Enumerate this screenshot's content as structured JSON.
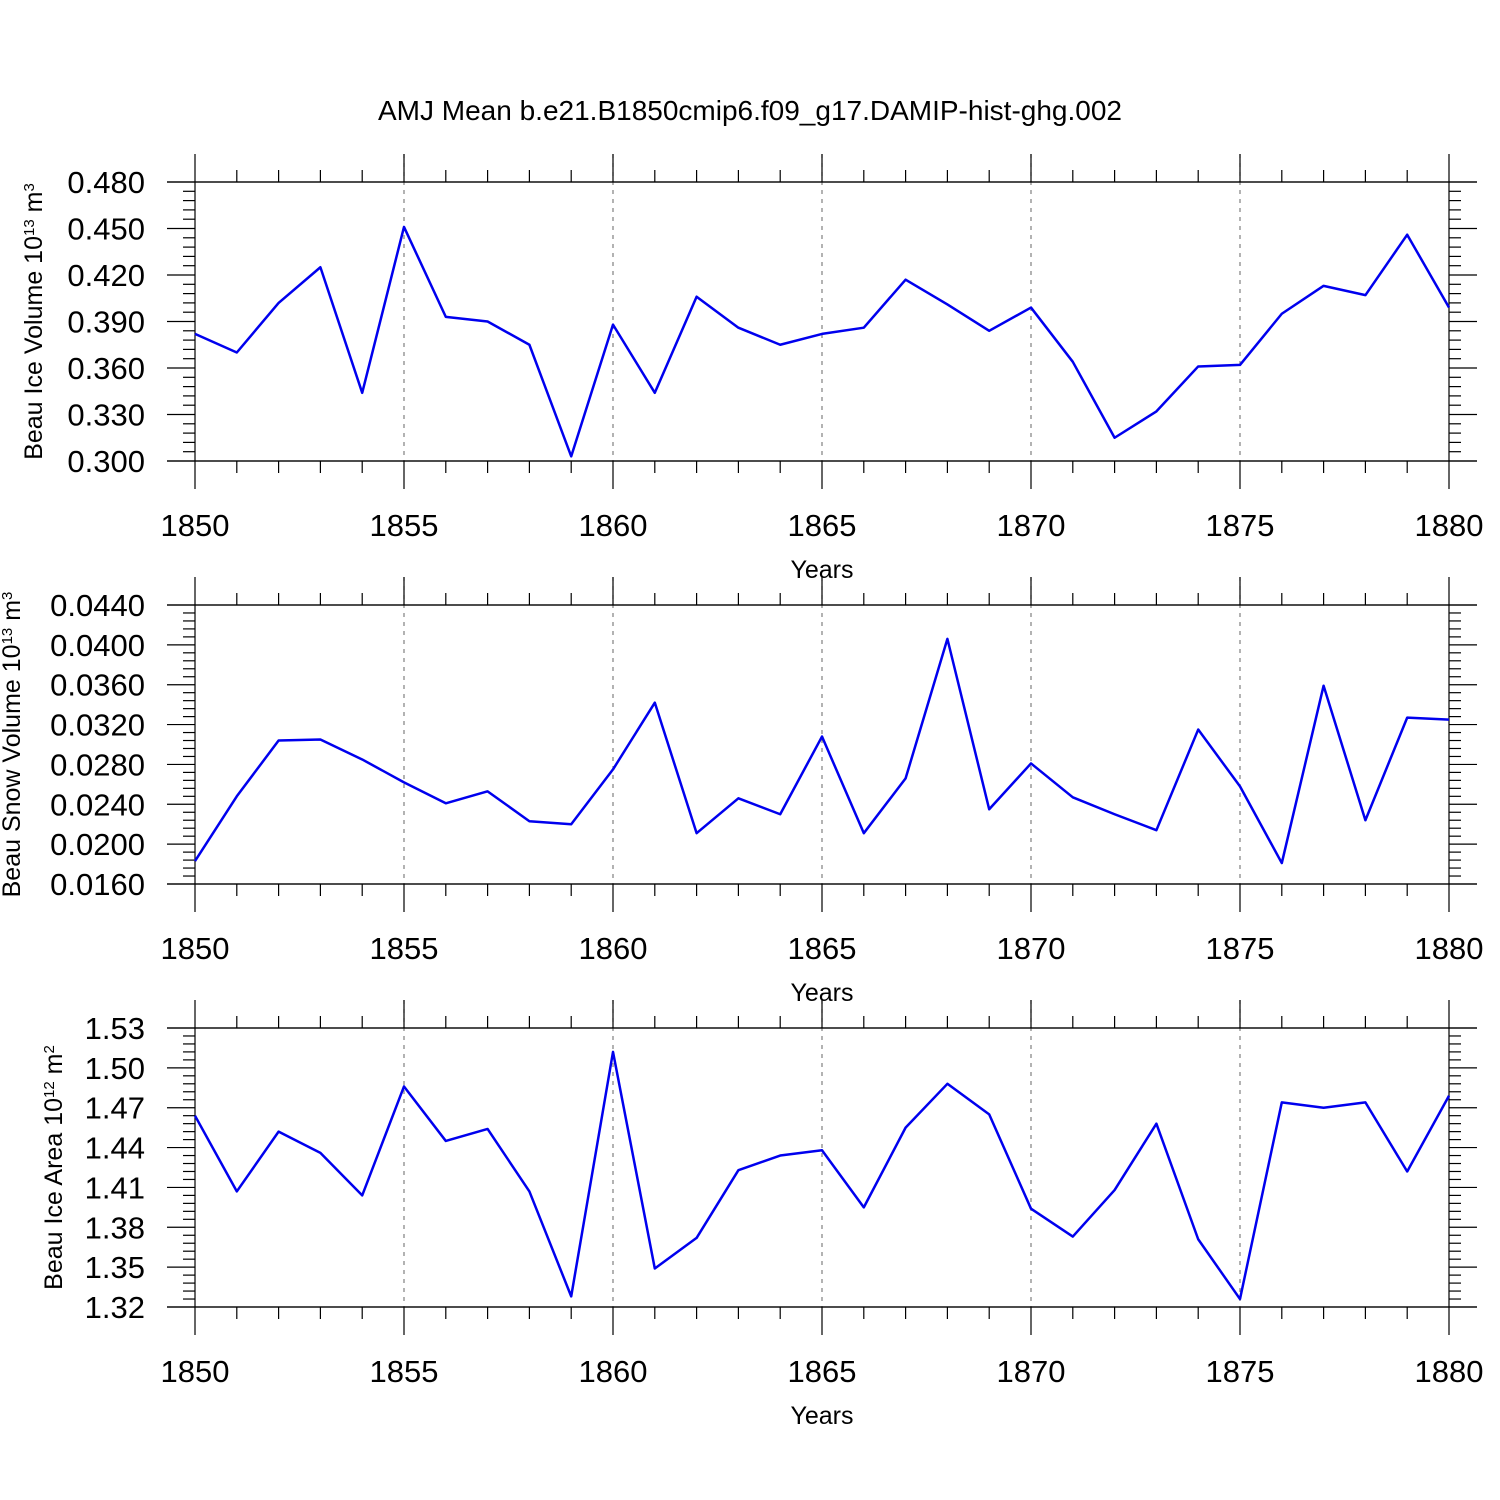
{
  "title": "AMJ Mean b.e21.B1850cmip6.f09_g17.DAMIP-hist-ghg.002",
  "colors": {
    "line": "#0000ee",
    "grid": "#808080",
    "axis": "#000000"
  },
  "chart_data": [
    {
      "type": "line",
      "xlabel": "Years",
      "ylabel": {
        "text": "Beau Ice Volume 10",
        "exp": "13",
        "unit": " m",
        "unit_exp": "3"
      },
      "xlim": [
        1850,
        1880
      ],
      "ylim": [
        0.3,
        0.48
      ],
      "yticks": [
        "0.300",
        "0.330",
        "0.360",
        "0.390",
        "0.420",
        "0.450",
        "0.480"
      ],
      "xticks": [
        "1850",
        "1855",
        "1860",
        "1865",
        "1870",
        "1875",
        "1880"
      ],
      "grid_x": [
        1855,
        1860,
        1865,
        1870,
        1875
      ],
      "x": [
        1850,
        1851,
        1852,
        1853,
        1854,
        1855,
        1856,
        1857,
        1858,
        1859,
        1860,
        1861,
        1862,
        1863,
        1864,
        1865,
        1866,
        1867,
        1868,
        1869,
        1870,
        1871,
        1872,
        1873,
        1874,
        1875,
        1876,
        1877,
        1878,
        1879,
        1880
      ],
      "series": [
        {
          "values": [
            0.382,
            0.37,
            0.402,
            0.425,
            0.344,
            0.451,
            0.393,
            0.39,
            0.375,
            0.303,
            0.388,
            0.344,
            0.406,
            0.386,
            0.375,
            0.382,
            0.386,
            0.417,
            0.401,
            0.384,
            0.399,
            0.364,
            0.315,
            0.332,
            0.361,
            0.362,
            0.395,
            0.413,
            0.407,
            0.446,
            0.399
          ]
        }
      ]
    },
    {
      "type": "line",
      "xlabel": "Years",
      "ylabel": {
        "text": "Beau Snow Volume 10",
        "exp": "13",
        "unit": " m",
        "unit_exp": "3"
      },
      "xlim": [
        1850,
        1880
      ],
      "ylim": [
        0.016,
        0.044
      ],
      "yticks": [
        "0.0160",
        "0.0200",
        "0.0240",
        "0.0280",
        "0.0320",
        "0.0360",
        "0.0400",
        "0.0440"
      ],
      "xticks": [
        "1850",
        "1855",
        "1860",
        "1865",
        "1870",
        "1875",
        "1880"
      ],
      "grid_x": [
        1855,
        1860,
        1865,
        1870,
        1875
      ],
      "x": [
        1850,
        1851,
        1852,
        1853,
        1854,
        1855,
        1856,
        1857,
        1858,
        1859,
        1860,
        1861,
        1862,
        1863,
        1864,
        1865,
        1866,
        1867,
        1868,
        1869,
        1870,
        1871,
        1872,
        1873,
        1874,
        1875,
        1876,
        1877,
        1878,
        1879,
        1880
      ],
      "series": [
        {
          "values": [
            0.0183,
            0.0248,
            0.0304,
            0.0305,
            0.0285,
            0.0262,
            0.0241,
            0.0253,
            0.0223,
            0.022,
            0.0275,
            0.0342,
            0.0211,
            0.0246,
            0.023,
            0.0308,
            0.0211,
            0.0266,
            0.0406,
            0.0235,
            0.0281,
            0.0247,
            0.023,
            0.0214,
            0.0315,
            0.0258,
            0.0181,
            0.0359,
            0.0224,
            0.0327,
            0.0325
          ]
        }
      ]
    },
    {
      "type": "line",
      "xlabel": "Years",
      "ylabel": {
        "text": "Beau Ice Area 10",
        "exp": "12",
        "unit": " m",
        "unit_exp": "2"
      },
      "xlim": [
        1850,
        1880
      ],
      "ylim": [
        1.32,
        1.53
      ],
      "yticks": [
        "1.32",
        "1.35",
        "1.38",
        "1.41",
        "1.44",
        "1.47",
        "1.50",
        "1.53"
      ],
      "xticks": [
        "1850",
        "1855",
        "1860",
        "1865",
        "1870",
        "1875",
        "1880"
      ],
      "grid_x": [
        1855,
        1860,
        1865,
        1870,
        1875
      ],
      "x": [
        1850,
        1851,
        1852,
        1853,
        1854,
        1855,
        1856,
        1857,
        1858,
        1859,
        1860,
        1861,
        1862,
        1863,
        1864,
        1865,
        1866,
        1867,
        1868,
        1869,
        1870,
        1871,
        1872,
        1873,
        1874,
        1875,
        1876,
        1877,
        1878,
        1879,
        1880
      ],
      "series": [
        {
          "values": [
            1.464,
            1.407,
            1.452,
            1.436,
            1.404,
            1.486,
            1.445,
            1.454,
            1.407,
            1.328,
            1.512,
            1.349,
            1.372,
            1.423,
            1.434,
            1.438,
            1.395,
            1.455,
            1.488,
            1.465,
            1.394,
            1.373,
            1.408,
            1.458,
            1.371,
            1.326,
            1.474,
            1.47,
            1.474,
            1.422,
            1.479
          ]
        }
      ]
    }
  ]
}
